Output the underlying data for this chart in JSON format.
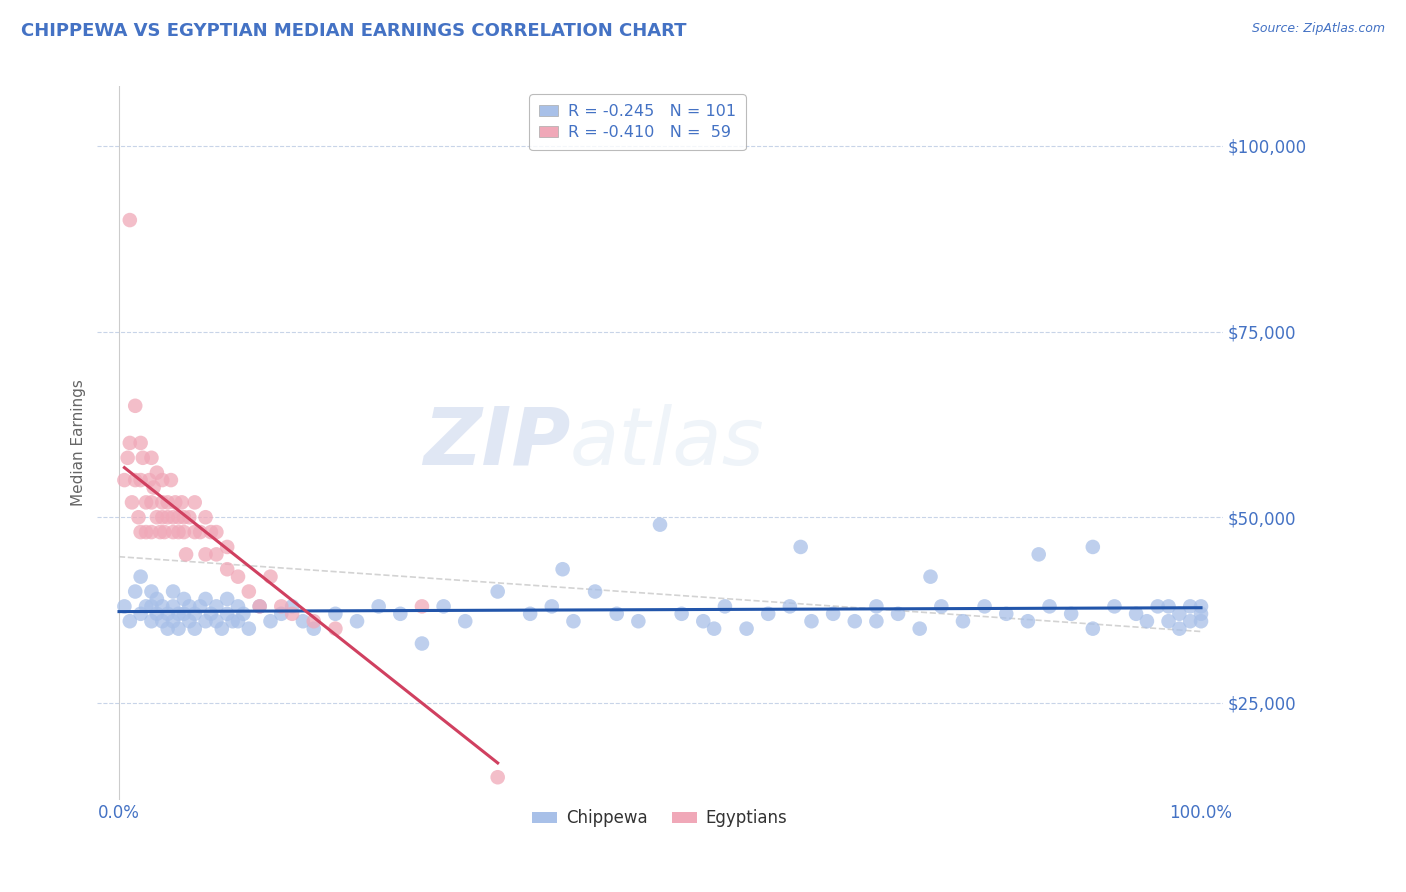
{
  "title": "CHIPPEWA VS EGYPTIAN MEDIAN EARNINGS CORRELATION CHART",
  "title_color": "#4472C4",
  "ylabel": "Median Earnings",
  "source_text": "Source: ZipAtlas.com",
  "watermark_zip": "ZIP",
  "watermark_atlas": "atlas",
  "legend_r1": "R = -0.245   N = 101",
  "legend_r2": "R = -0.410   N =  59",
  "chippewa_color": "#A8C0E8",
  "egyptian_color": "#F0A8B8",
  "chippewa_line_color": "#2255AA",
  "egyptian_line_color": "#D04060",
  "dash_line_color": "#C8C8C8",
  "ytick_labels": [
    "$25,000",
    "$50,000",
    "$75,000",
    "$100,000"
  ],
  "ytick_values": [
    25000,
    50000,
    75000,
    100000
  ],
  "ylim": [
    12000,
    108000
  ],
  "xlim": [
    -0.02,
    1.02
  ],
  "grid_color": "#C8D4E8",
  "background_color": "#FFFFFF",
  "chippewa_x": [
    0.005,
    0.01,
    0.015,
    0.02,
    0.02,
    0.025,
    0.03,
    0.03,
    0.03,
    0.035,
    0.035,
    0.04,
    0.04,
    0.045,
    0.045,
    0.05,
    0.05,
    0.05,
    0.055,
    0.055,
    0.06,
    0.06,
    0.065,
    0.065,
    0.07,
    0.07,
    0.075,
    0.08,
    0.08,
    0.085,
    0.09,
    0.09,
    0.095,
    0.1,
    0.1,
    0.105,
    0.11,
    0.11,
    0.115,
    0.12,
    0.13,
    0.14,
    0.15,
    0.16,
    0.17,
    0.18,
    0.2,
    0.22,
    0.24,
    0.26,
    0.28,
    0.3,
    0.32,
    0.35,
    0.38,
    0.4,
    0.42,
    0.44,
    0.46,
    0.48,
    0.5,
    0.52,
    0.54,
    0.56,
    0.58,
    0.6,
    0.62,
    0.64,
    0.66,
    0.68,
    0.7,
    0.72,
    0.74,
    0.76,
    0.78,
    0.8,
    0.82,
    0.84,
    0.86,
    0.88,
    0.9,
    0.92,
    0.94,
    0.95,
    0.96,
    0.97,
    0.97,
    0.98,
    0.98,
    0.99,
    0.99,
    1.0,
    1.0,
    1.0,
    0.63,
    0.41,
    0.55,
    0.7,
    0.85,
    0.75,
    0.9
  ],
  "chippewa_y": [
    38000,
    36000,
    40000,
    37000,
    42000,
    38000,
    36000,
    40000,
    38000,
    37000,
    39000,
    36000,
    38000,
    37000,
    35000,
    40000,
    38000,
    36000,
    37000,
    35000,
    39000,
    37000,
    36000,
    38000,
    37000,
    35000,
    38000,
    36000,
    39000,
    37000,
    38000,
    36000,
    35000,
    37000,
    39000,
    36000,
    38000,
    36000,
    37000,
    35000,
    38000,
    36000,
    37000,
    38000,
    36000,
    35000,
    37000,
    36000,
    38000,
    37000,
    33000,
    38000,
    36000,
    40000,
    37000,
    38000,
    36000,
    40000,
    37000,
    36000,
    49000,
    37000,
    36000,
    38000,
    35000,
    37000,
    38000,
    36000,
    37000,
    36000,
    38000,
    37000,
    35000,
    38000,
    36000,
    38000,
    37000,
    36000,
    38000,
    37000,
    35000,
    38000,
    37000,
    36000,
    38000,
    38000,
    36000,
    37000,
    35000,
    38000,
    36000,
    38000,
    37000,
    36000,
    46000,
    43000,
    35000,
    36000,
    45000,
    42000,
    46000
  ],
  "egyptian_x": [
    0.005,
    0.008,
    0.01,
    0.01,
    0.012,
    0.015,
    0.015,
    0.018,
    0.02,
    0.02,
    0.02,
    0.022,
    0.025,
    0.025,
    0.028,
    0.03,
    0.03,
    0.03,
    0.032,
    0.035,
    0.035,
    0.038,
    0.04,
    0.04,
    0.04,
    0.042,
    0.045,
    0.045,
    0.048,
    0.05,
    0.05,
    0.052,
    0.055,
    0.055,
    0.058,
    0.06,
    0.06,
    0.062,
    0.065,
    0.07,
    0.07,
    0.075,
    0.08,
    0.08,
    0.085,
    0.09,
    0.09,
    0.1,
    0.1,
    0.11,
    0.12,
    0.13,
    0.14,
    0.15,
    0.16,
    0.18,
    0.2,
    0.28,
    0.35
  ],
  "egyptian_y": [
    55000,
    58000,
    90000,
    60000,
    52000,
    65000,
    55000,
    50000,
    60000,
    55000,
    48000,
    58000,
    52000,
    48000,
    55000,
    58000,
    52000,
    48000,
    54000,
    50000,
    56000,
    48000,
    52000,
    50000,
    55000,
    48000,
    52000,
    50000,
    55000,
    50000,
    48000,
    52000,
    50000,
    48000,
    52000,
    50000,
    48000,
    45000,
    50000,
    48000,
    52000,
    48000,
    45000,
    50000,
    48000,
    45000,
    48000,
    43000,
    46000,
    42000,
    40000,
    38000,
    42000,
    38000,
    37000,
    36000,
    35000,
    38000,
    15000
  ]
}
